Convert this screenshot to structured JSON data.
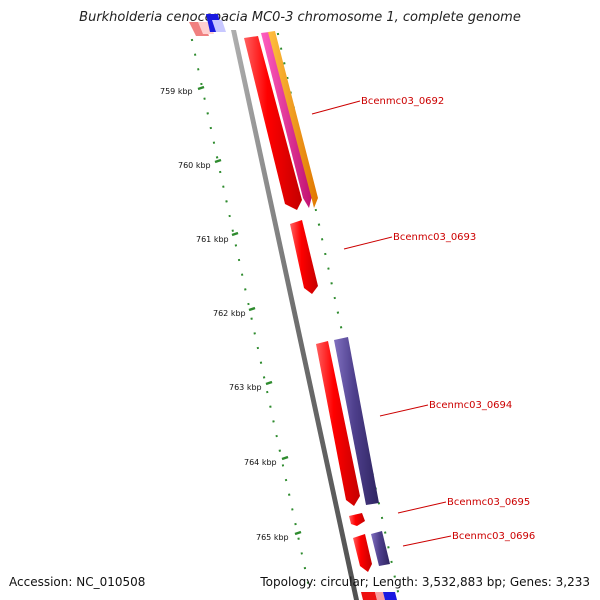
{
  "title": "Burkholderia cenocepacia MC0-3 chromosome 1, complete genome",
  "accession": "Accession: NC_010508",
  "summary": "Topology: circular; Length: 3,532,883 bp; Genes: 3,233",
  "ticks": [
    "759 kbp",
    "760 kbp",
    "761 kbp",
    "762 kbp",
    "763 kbp",
    "764 kbp",
    "765 kbp"
  ],
  "genes": [
    "Bcenmc03_0692",
    "Bcenmc03_0693",
    "Bcenmc03_0694",
    "Bcenmc03_0695",
    "Bcenmc03_0696"
  ],
  "colors": {
    "backbone": "#7a7a7a",
    "tick": "#2e8b2e",
    "gene": "#ee1111",
    "gene_label": "#cc0000",
    "magenta": "#e0208a",
    "orange": "#ff9900",
    "purple": "#4e3f8c",
    "blue": "#1a1ae0"
  }
}
